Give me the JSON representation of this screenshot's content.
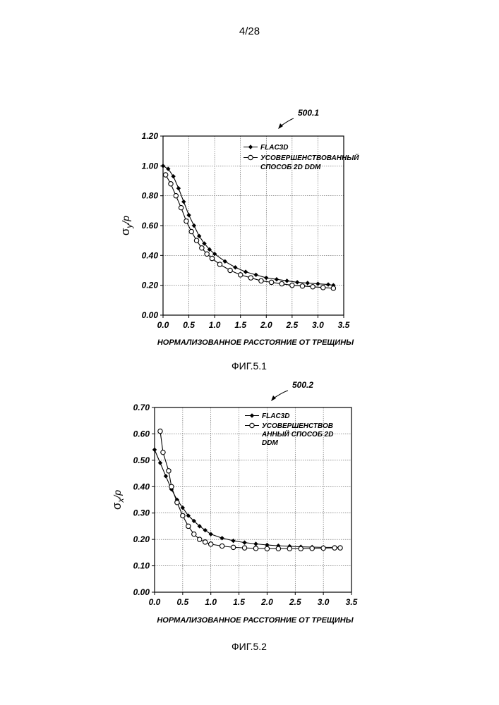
{
  "page": {
    "number": "4/28"
  },
  "chart_data": [
    {
      "type": "line",
      "ref_label": "500.1",
      "caption": "ФИГ.5.1",
      "xlabel": "НОРМАЛИЗОВАННОЕ РАССТОЯНИЕ ОТ ТРЕЩИНЫ",
      "ylabel_main": "σ",
      "ylabel_sub": "y",
      "ylabel_tail": "/p",
      "xlim": [
        0,
        3.5
      ],
      "ylim": [
        0,
        1.2
      ],
      "xticks": [
        "0.0",
        "0.5",
        "1.0",
        "1.5",
        "2.0",
        "2.5",
        "3.0",
        "3.5"
      ],
      "yticks": [
        "0.00",
        "0.20",
        "0.40",
        "0.60",
        "0.80",
        "1.00",
        "1.20"
      ],
      "grid": true,
      "legend_position": "top-right",
      "legend_lines": [
        [
          "FLAC3D"
        ],
        [
          "УСОВЕРШЕНСТВОВАННЫЙ",
          "СПОСОБ 2D DDM"
        ]
      ],
      "series": [
        {
          "name": "FLAC3D",
          "marker": "filled-diamond",
          "x": [
            0.0,
            0.1,
            0.2,
            0.3,
            0.4,
            0.5,
            0.6,
            0.7,
            0.8,
            0.9,
            1.0,
            1.2,
            1.4,
            1.6,
            1.8,
            2.0,
            2.2,
            2.4,
            2.6,
            2.8,
            3.0,
            3.2,
            3.3
          ],
          "y": [
            1.0,
            0.98,
            0.93,
            0.85,
            0.76,
            0.67,
            0.6,
            0.53,
            0.48,
            0.44,
            0.41,
            0.36,
            0.32,
            0.29,
            0.27,
            0.25,
            0.24,
            0.23,
            0.22,
            0.215,
            0.21,
            0.205,
            0.2
          ]
        },
        {
          "name": "УСОВЕРШЕНСТВОВАННЫЙ СПОСОБ 2D DDM",
          "marker": "open-circle",
          "x": [
            0.05,
            0.15,
            0.25,
            0.35,
            0.45,
            0.55,
            0.65,
            0.75,
            0.85,
            0.95,
            1.1,
            1.3,
            1.5,
            1.7,
            1.9,
            2.1,
            2.3,
            2.5,
            2.7,
            2.9,
            3.1,
            3.3
          ],
          "y": [
            0.94,
            0.88,
            0.8,
            0.72,
            0.63,
            0.56,
            0.5,
            0.45,
            0.41,
            0.38,
            0.34,
            0.3,
            0.27,
            0.25,
            0.23,
            0.22,
            0.21,
            0.2,
            0.195,
            0.19,
            0.185,
            0.18
          ]
        }
      ]
    },
    {
      "type": "line",
      "ref_label": "500.2",
      "caption": "ФИГ.5.2",
      "xlabel": "НОРМАЛИЗОВАННОЕ РАССТОЯНИЕ ОТ ТРЕЩИНЫ",
      "ylabel_main": "σ",
      "ylabel_sub": "x",
      "ylabel_tail": "/p",
      "xlim": [
        0,
        3.5
      ],
      "ylim": [
        0,
        0.7
      ],
      "xticks": [
        "0.0",
        "0.5",
        "1.0",
        "1.5",
        "2.0",
        "2.5",
        "3.0",
        "3.5"
      ],
      "yticks": [
        "0.00",
        "0.10",
        "0.20",
        "0.30",
        "0.40",
        "0.50",
        "0.60",
        "0.70"
      ],
      "grid": true,
      "legend_position": "top-right",
      "legend_lines": [
        [
          "FLAC3D"
        ],
        [
          "УСОВЕРШЕНСТВОВ",
          "АННЫЙ СПОСОБ 2D",
          "DDM"
        ]
      ],
      "series": [
        {
          "name": "FLAC3D",
          "marker": "filled-diamond",
          "x": [
            0.0,
            0.1,
            0.2,
            0.3,
            0.4,
            0.5,
            0.6,
            0.7,
            0.8,
            0.9,
            1.0,
            1.2,
            1.4,
            1.6,
            1.8,
            2.0,
            2.2,
            2.4,
            2.6,
            2.8,
            3.0,
            3.2,
            3.3
          ],
          "y": [
            0.54,
            0.49,
            0.44,
            0.39,
            0.35,
            0.32,
            0.29,
            0.27,
            0.25,
            0.235,
            0.22,
            0.205,
            0.195,
            0.188,
            0.183,
            0.179,
            0.176,
            0.174,
            0.172,
            0.171,
            0.17,
            0.17,
            0.17
          ]
        },
        {
          "name": "УСОВЕРШЕНСТВОВАННЫЙ СПОСОБ 2D DDM",
          "marker": "open-circle",
          "x": [
            0.1,
            0.15,
            0.25,
            0.3,
            0.4,
            0.5,
            0.6,
            0.7,
            0.8,
            0.9,
            1.0,
            1.2,
            1.4,
            1.6,
            1.8,
            2.0,
            2.2,
            2.4,
            2.6,
            2.8,
            3.0,
            3.2,
            3.3
          ],
          "y": [
            0.61,
            0.53,
            0.46,
            0.4,
            0.34,
            0.29,
            0.25,
            0.22,
            0.2,
            0.19,
            0.182,
            0.175,
            0.17,
            0.168,
            0.166,
            0.165,
            0.165,
            0.165,
            0.165,
            0.166,
            0.167,
            0.168,
            0.168
          ]
        }
      ]
    }
  ]
}
